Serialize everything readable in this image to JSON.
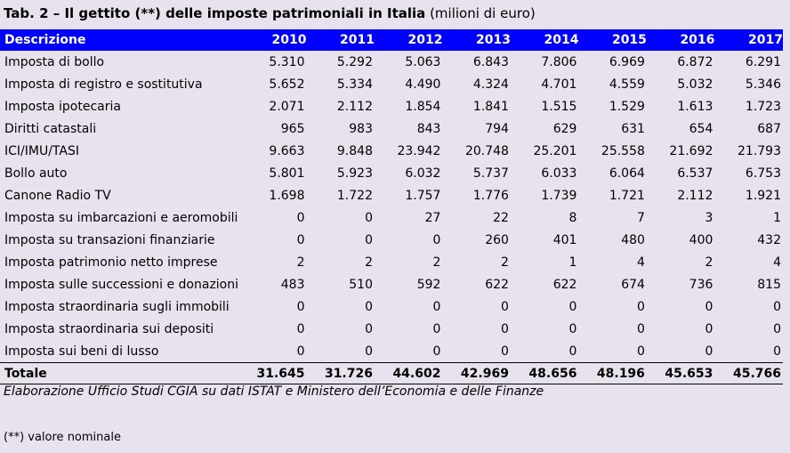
{
  "title": {
    "bold": "Tab. 2 – Il gettito (**) delle imposte patrimoniali in Italia",
    "sub": "(milioni di euro)"
  },
  "table": {
    "header": [
      "Descrizione",
      "2010",
      "2011",
      "2012",
      "2013",
      "2014",
      "2015",
      "2016",
      "2017"
    ],
    "rows": [
      [
        "Imposta di bollo",
        "5.310",
        "5.292",
        "5.063",
        "6.843",
        "7.806",
        "6.969",
        "6.872",
        "6.291"
      ],
      [
        "Imposta di registro e sostitutiva",
        "5.652",
        "5.334",
        "4.490",
        "4.324",
        "4.701",
        "4.559",
        "5.032",
        "5.346"
      ],
      [
        "Imposta ipotecaria",
        "2.071",
        "2.112",
        "1.854",
        "1.841",
        "1.515",
        "1.529",
        "1.613",
        "1.723"
      ],
      [
        "Diritti catastali",
        "965",
        "983",
        "843",
        "794",
        "629",
        "631",
        "654",
        "687"
      ],
      [
        "ICI/IMU/TASI",
        "9.663",
        "9.848",
        "23.942",
        "20.748",
        "25.201",
        "25.558",
        "21.692",
        "21.793"
      ],
      [
        "Bollo auto",
        "5.801",
        "5.923",
        "6.032",
        "5.737",
        "6.033",
        "6.064",
        "6.537",
        "6.753"
      ],
      [
        "Canone Radio TV",
        "1.698",
        "1.722",
        "1.757",
        "1.776",
        "1.739",
        "1.721",
        "2.112",
        "1.921"
      ],
      [
        "Imposta su imbarcazioni e aeromobili",
        "0",
        "0",
        "27",
        "22",
        "8",
        "7",
        "3",
        "1"
      ],
      [
        "Imposta su transazioni finanziarie",
        "0",
        "0",
        "0",
        "260",
        "401",
        "480",
        "400",
        "432"
      ],
      [
        "Imposta patrimonio netto imprese",
        "2",
        "2",
        "2",
        "2",
        "1",
        "4",
        "2",
        "4"
      ],
      [
        "Imposta sulle successioni e donazioni",
        "483",
        "510",
        "592",
        "622",
        "622",
        "674",
        "736",
        "815"
      ],
      [
        "Imposta straordinaria sugli immobili",
        "0",
        "0",
        "0",
        "0",
        "0",
        "0",
        "0",
        "0"
      ],
      [
        "Imposta straordinaria sui depositi",
        "0",
        "0",
        "0",
        "0",
        "0",
        "0",
        "0",
        "0"
      ],
      [
        "Imposta sui beni di lusso",
        "0",
        "0",
        "0",
        "0",
        "0",
        "0",
        "0",
        "0"
      ]
    ],
    "total": [
      "Totale",
      "31.645",
      "31.726",
      "44.602",
      "42.969",
      "48.656",
      "48.196",
      "45.653",
      "45.766"
    ]
  },
  "source": "Elaborazione Ufficio Studi CGIA su dati ISTAT e Ministero dell’Economia e delle Finanze",
  "note": "(**) valore nominale",
  "colors": {
    "header_bg": "#0000ff",
    "page_bg": "#e8e2ee"
  }
}
